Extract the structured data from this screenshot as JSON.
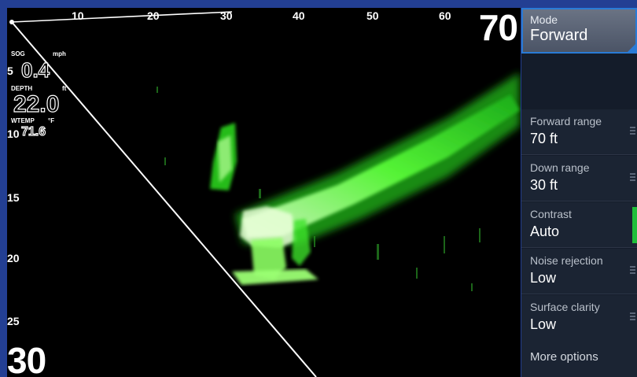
{
  "range_scale": {
    "labels": [
      "10",
      "20",
      "30",
      "40",
      "50",
      "60"
    ],
    "max": "70"
  },
  "depth_scale": {
    "labels": [
      "5",
      "10",
      "15",
      "20",
      "25"
    ],
    "max": "30"
  },
  "overlay": {
    "sog_label": "SOG",
    "sog_unit": "mph",
    "sog_value": "0.4",
    "depth_label": "DEPTH",
    "depth_unit": "ft",
    "depth_value": "22.0",
    "wtemp_label": "WTEMP",
    "wtemp_unit": "°F",
    "wtemp_value": "71.6"
  },
  "menu": {
    "mode": {
      "label": "Mode",
      "value": "Forward"
    },
    "items": [
      {
        "label": "Forward range",
        "value": "70 ft"
      },
      {
        "label": "Down range",
        "value": "30 ft"
      },
      {
        "label": "Contrast",
        "value": "Auto"
      },
      {
        "label": "Noise rejection",
        "value": "Low"
      },
      {
        "label": "Surface clarity",
        "value": "Low"
      }
    ],
    "more_options": "More options"
  },
  "colors": {
    "echo_green": "#3cff2a",
    "accent_blue": "#2a7bd6",
    "contrast_bar": "#1fbf3a"
  }
}
